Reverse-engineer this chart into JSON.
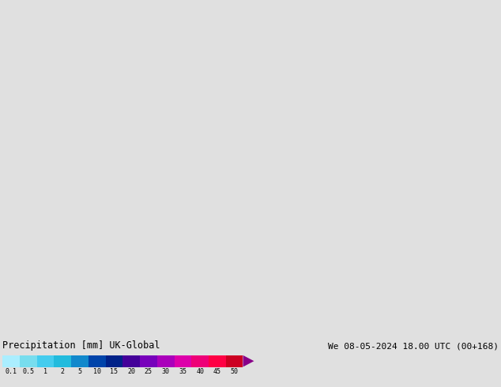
{
  "title_left": "Precipitation [mm] UK-Global",
  "title_right": "We 08-05-2024 18.00 UTC (00+168)",
  "colorbar_labels": [
    "0.1",
    "0.5",
    "1",
    "2",
    "5",
    "10",
    "15",
    "20",
    "25",
    "30",
    "35",
    "40",
    "45",
    "50"
  ],
  "colorbar_colors": [
    "#aaeeff",
    "#77ddee",
    "#44ccee",
    "#22bbdd",
    "#1188cc",
    "#0044aa",
    "#002288",
    "#440099",
    "#7700bb",
    "#aa00bb",
    "#dd00aa",
    "#ee0077",
    "#ff0044",
    "#cc0022"
  ],
  "background_color": "#e0e0e0",
  "land_color": "#ccffcc",
  "sea_color": "#e0e0e0",
  "border_color": "#999999",
  "fig_width": 6.34,
  "fig_height": 4.9,
  "dpi": 100,
  "map_extent": [
    -11.0,
    6.0,
    49.0,
    61.5
  ],
  "cb_title_fontsize": 9,
  "cb_label_fontsize": 6.5
}
